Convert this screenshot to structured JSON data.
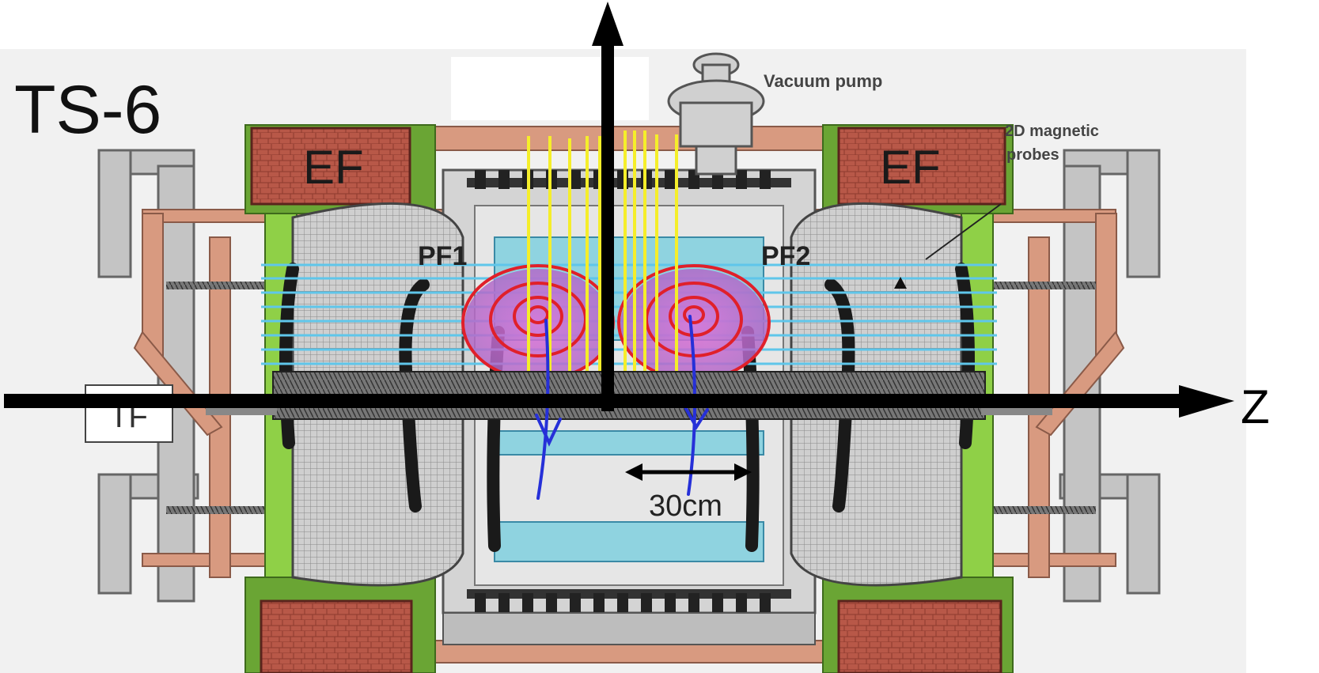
{
  "title": "TS-6",
  "labels": {
    "ef_left": "EF",
    "ef_right": "EF",
    "pf1": "PF1",
    "pf2": "PF2",
    "tf": "TF",
    "vacuum_pump": "Vacuum pump",
    "probes_line1": "2D magnetic",
    "probes_line2": "probes",
    "scale": "30cm",
    "z_axis": "Z"
  },
  "colors": {
    "background_panel": "#efefef",
    "ef_coil": "#b85848",
    "ef_coil_frame": "#6aa534",
    "support_copper": "#d89a80",
    "frame_gray": "#b8b8b8",
    "field_lines_yellow": "#f5ee2a",
    "field_lines_cyan": "#5fc6ea",
    "flux_contours_red": "#e0202a",
    "plasma_magenta": "#c070c8",
    "current_arrows_blue": "#2630d8",
    "axis_black": "#000000",
    "vessel_cyan": "#8fd3e0"
  },
  "icons": [
    "up-arrow-icon",
    "right-arrow-icon",
    "double-arrow-icon",
    "vacuum-pump-icon",
    "probe-pointer-icon"
  ]
}
